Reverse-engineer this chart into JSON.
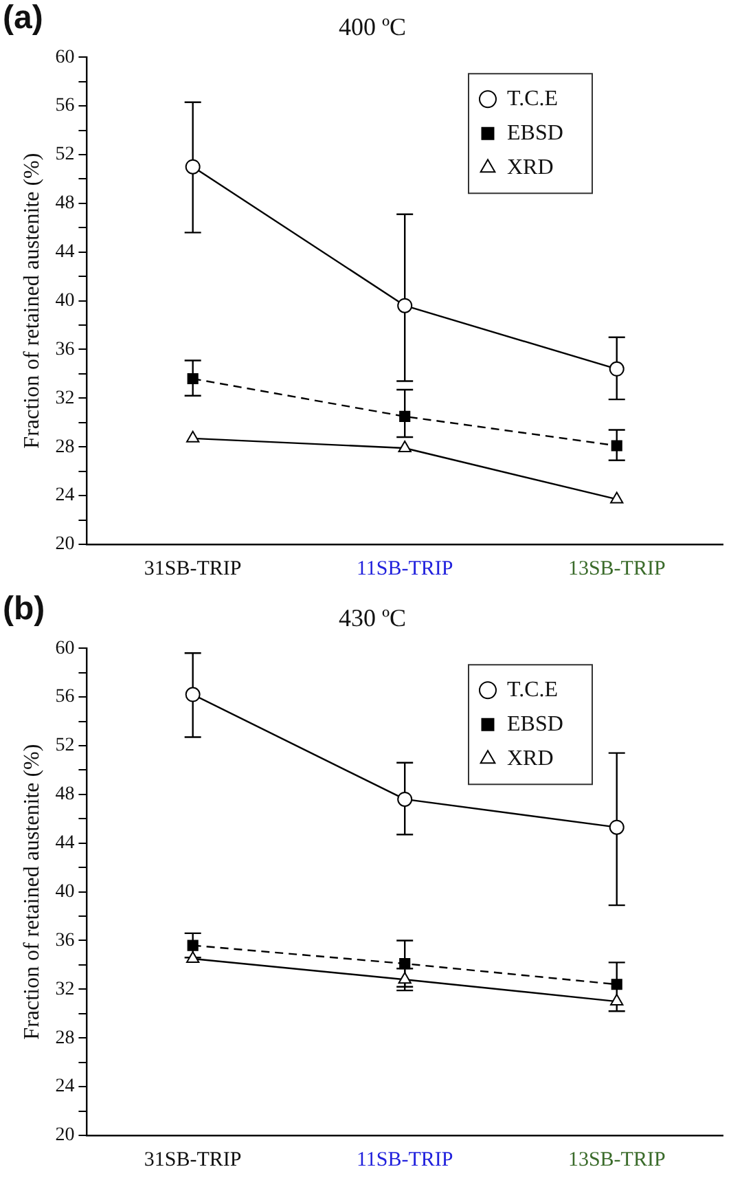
{
  "chart_data": [
    {
      "type": "line",
      "title": "400 ºC",
      "ylabel": "Fraction of retained austenite (%)",
      "annotations": [
        "(a)"
      ],
      "categories": [
        "31SB-TRIP",
        "11SB-TRIP",
        "13SB-TRIP"
      ],
      "series": [
        {
          "name": "T.C.E",
          "color": "#000000",
          "marker": "circle",
          "line_style": "solid",
          "values": [
            51.0,
            39.6,
            34.4
          ],
          "errors": [
            [
              45.6,
              56.3
            ],
            [
              33.4,
              47.1
            ],
            [
              31.9,
              37.0
            ]
          ]
        },
        {
          "name": "EBSD",
          "color": "#000000",
          "marker": "square",
          "line_style": "dashed",
          "values": [
            33.6,
            30.5,
            28.1
          ],
          "errors": [
            [
              32.2,
              35.1
            ],
            [
              28.8,
              32.7
            ],
            [
              26.9,
              29.4
            ]
          ]
        },
        {
          "name": "XRD",
          "color": "#000000",
          "marker": "triangle",
          "line_style": "solid",
          "values": [
            28.7,
            27.9,
            23.7
          ]
        }
      ],
      "ylim": [
        20,
        60
      ],
      "yticks": [
        20,
        {
          "value": 22,
          "label": null
        },
        24,
        {
          "value": 26,
          "label": null
        },
        28,
        {
          "value": 30,
          "label": null
        },
        32,
        {
          "value": 34,
          "label": null
        },
        36,
        {
          "value": 38,
          "label": null
        },
        40,
        {
          "value": 42,
          "label": null
        },
        44,
        {
          "value": 46,
          "label": null
        },
        48,
        {
          "value": 50,
          "label": null
        },
        52,
        {
          "value": 54,
          "label": null
        },
        56,
        {
          "value": 58,
          "label": null
        },
        60
      ],
      "grid": false,
      "legend": "top right"
    },
    {
      "type": "line",
      "title": "430 ºC",
      "ylabel": "Fraction of retained austenite (%)",
      "annotations": [
        "(b)"
      ],
      "categories": [
        "31SB-TRIP",
        "11SB-TRIP",
        "13SB-TRIP"
      ],
      "series": [
        {
          "name": "T.C.E",
          "color": "#000000",
          "marker": "circle",
          "line_style": "solid",
          "values": [
            56.2,
            47.6,
            45.3
          ],
          "errors": [
            [
              52.7,
              59.6
            ],
            [
              44.7,
              50.6
            ],
            [
              38.9,
              51.4
            ]
          ]
        },
        {
          "name": "EBSD",
          "color": "#000000",
          "marker": "square",
          "line_style": "dashed",
          "values": [
            35.6,
            34.1,
            32.4
          ],
          "errors": [
            [
              34.6,
              36.6
            ],
            [
              32.2,
              36.0
            ],
            [
              30.2,
              34.2
            ]
          ]
        },
        {
          "name": "XRD",
          "color": "#000000",
          "marker": "triangle",
          "line_style": "solid",
          "values": [
            34.5,
            32.8,
            31.0
          ],
          "errors": [
            null,
            [
              31.9,
              33.7
            ],
            null
          ]
        }
      ],
      "ylim": [
        20,
        60
      ],
      "yticks": [
        20,
        {
          "value": 22,
          "label": null
        },
        24,
        {
          "value": 26,
          "label": null
        },
        28,
        {
          "value": 30,
          "label": null
        },
        32,
        {
          "value": 34,
          "label": null
        },
        36,
        {
          "value": 38,
          "label": null
        },
        40,
        {
          "value": 42,
          "label": null
        },
        44,
        {
          "value": 46,
          "label": null
        },
        48,
        {
          "value": 50,
          "label": null
        },
        52,
        {
          "value": 54,
          "label": null
        },
        56,
        {
          "value": 58,
          "label": null
        },
        60
      ],
      "grid": false,
      "legend": "top right"
    }
  ]
}
